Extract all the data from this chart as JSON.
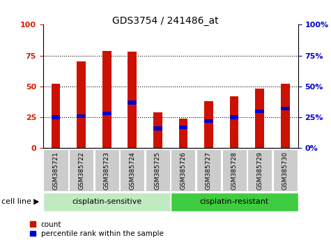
{
  "title": "GDS3754 / 241486_at",
  "samples": [
    "GSM385721",
    "GSM385722",
    "GSM385723",
    "GSM385724",
    "GSM385725",
    "GSM385726",
    "GSM385727",
    "GSM385728",
    "GSM385729",
    "GSM385730"
  ],
  "count_values": [
    52,
    70,
    79,
    78,
    29,
    24,
    38,
    42,
    48,
    52
  ],
  "percentile_values": [
    25,
    26,
    28,
    37,
    16,
    17,
    22,
    25,
    30,
    32
  ],
  "groups": [
    {
      "label": "cisplatin-sensitive",
      "start": 0,
      "end": 5,
      "color": "#c0eac0"
    },
    {
      "label": "cisplatin-resistant",
      "start": 5,
      "end": 10,
      "color": "#40cc40"
    }
  ],
  "group_label": "cell line",
  "ylim": [
    0,
    100
  ],
  "yticks": [
    0,
    25,
    50,
    75,
    100
  ],
  "bar_color": "#cc1100",
  "percentile_color": "#0000cc",
  "bar_width": 0.35,
  "tick_label_color_left": "#cc2200",
  "tick_label_color_right": "#0000cc",
  "xtick_bg": "#cccccc",
  "grid_lines": [
    25,
    50,
    75
  ],
  "fig_width": 4.75,
  "fig_height": 3.54,
  "dpi": 100
}
